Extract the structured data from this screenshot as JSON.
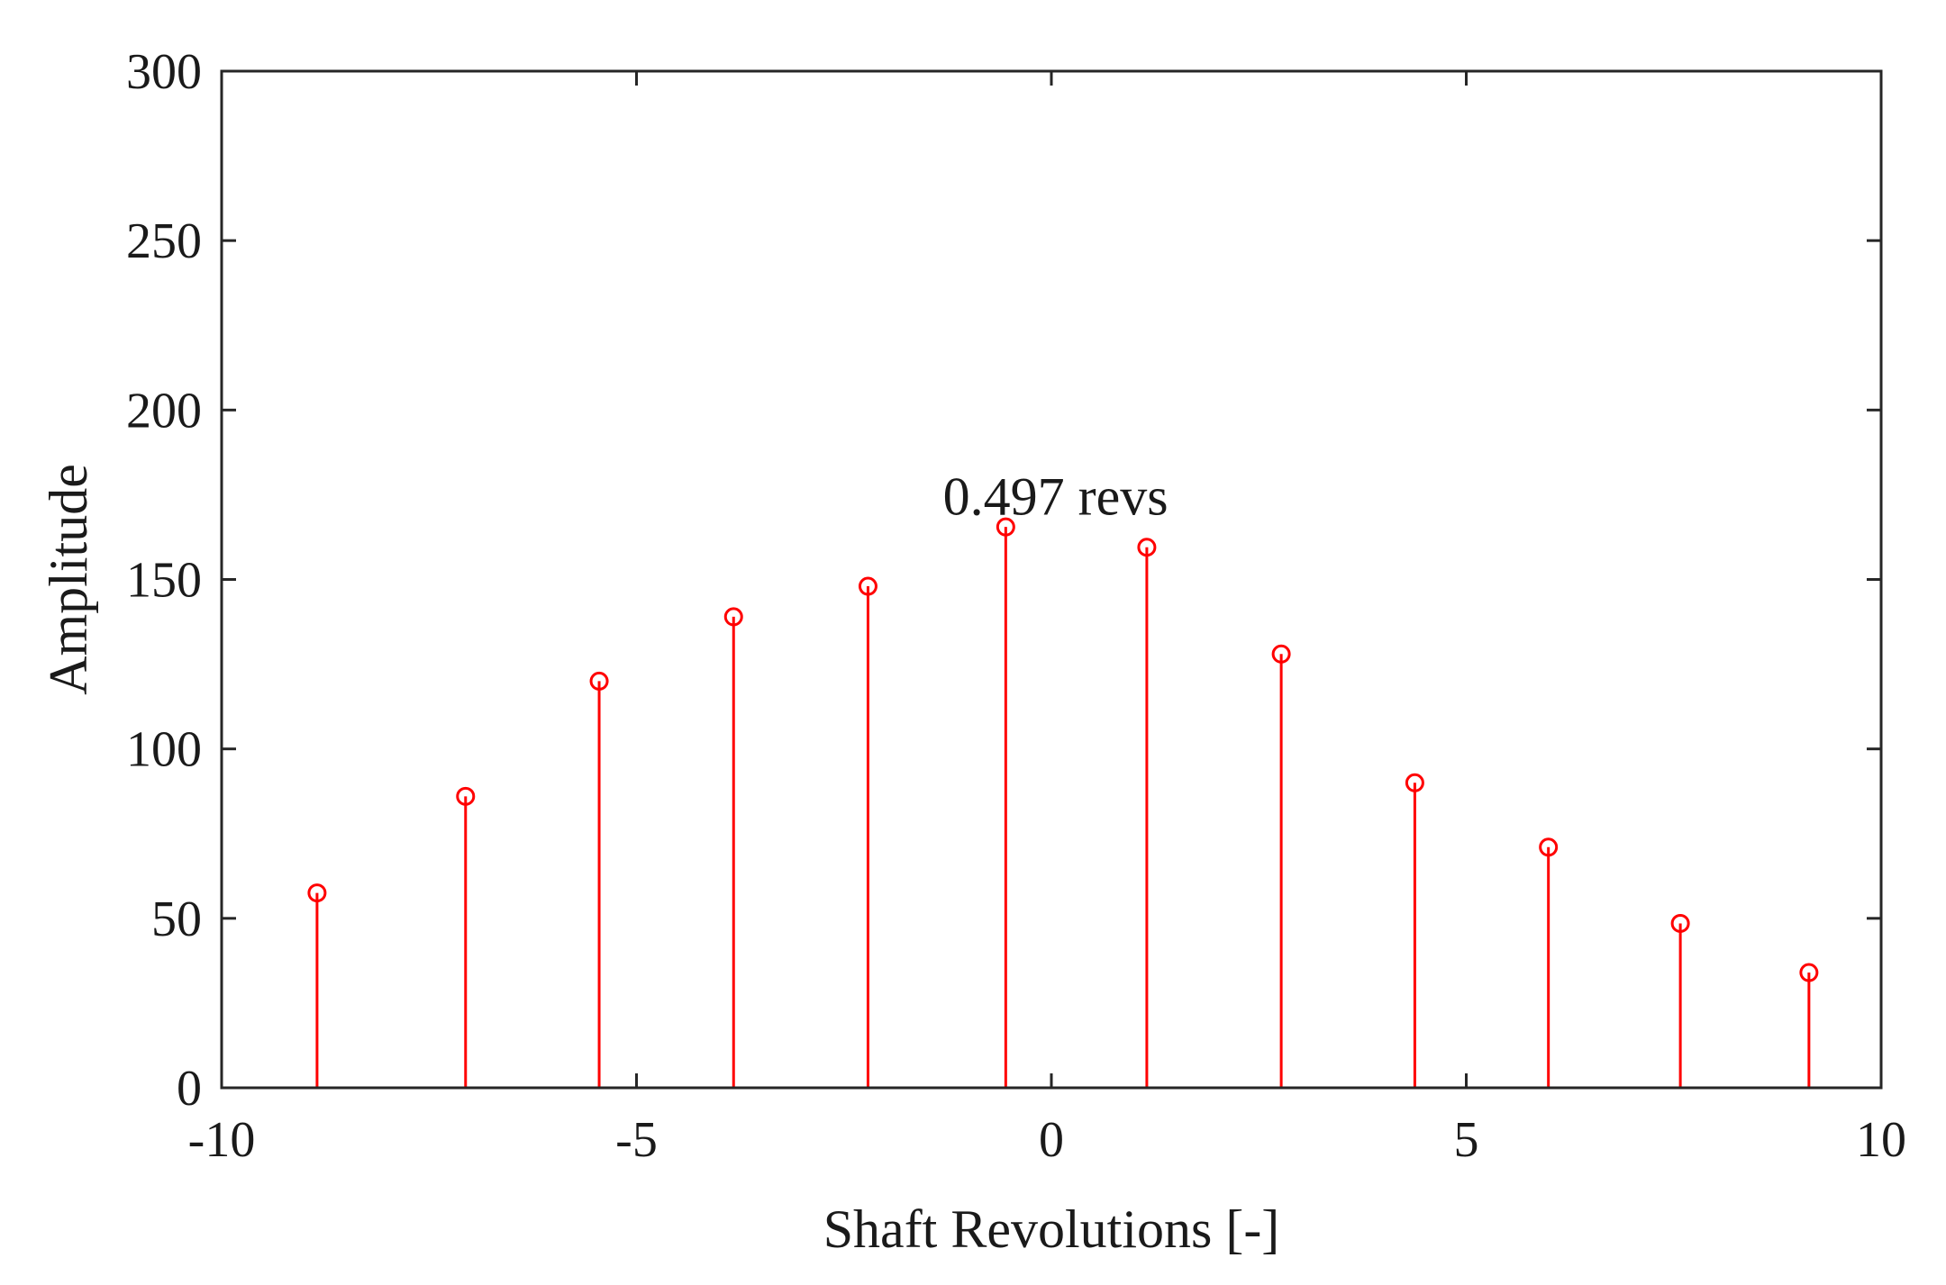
{
  "chart_data": {
    "type": "stem",
    "xlabel": "Shaft Revolutions [-]",
    "ylabel": "Amplitude",
    "xlim": [
      -10,
      10
    ],
    "ylim": [
      0,
      300
    ],
    "xticks": [
      -10,
      -5,
      0,
      5,
      10
    ],
    "yticks": [
      0,
      50,
      100,
      150,
      200,
      250,
      300
    ],
    "xtick_labels": [
      "-10",
      "-5",
      "0",
      "5",
      "10"
    ],
    "ytick_labels": [
      "0",
      "50",
      "100",
      "150",
      "200",
      "250",
      "300"
    ],
    "grid": false,
    "series": [
      {
        "color": "#ff0000",
        "marker": "open-circle",
        "x": [
          -8.85,
          -7.06,
          -5.45,
          -3.83,
          -2.21,
          -0.55,
          1.15,
          2.77,
          4.38,
          5.99,
          7.58,
          9.13
        ],
        "y": [
          57.5,
          86,
          120,
          139,
          148,
          165.5,
          159.5,
          128,
          90,
          71,
          48.5,
          34
        ]
      }
    ],
    "annotations": [
      {
        "text": "0.497 revs",
        "x": 0.05,
        "y": 175
      }
    ]
  }
}
